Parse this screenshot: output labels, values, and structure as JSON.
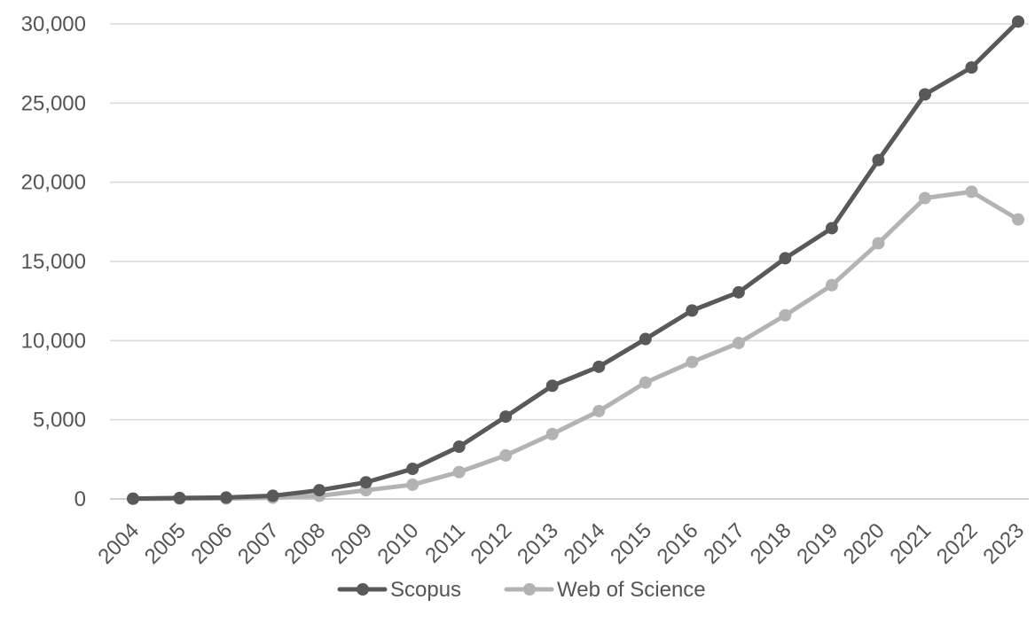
{
  "chart_data": {
    "type": "line",
    "title": "",
    "xlabel": "",
    "ylabel": "",
    "x": [
      "2004",
      "2005",
      "2006",
      "2007",
      "2008",
      "2009",
      "2010",
      "2011",
      "2012",
      "2013",
      "2014",
      "2015",
      "2016",
      "2017",
      "2018",
      "2019",
      "2020",
      "2021",
      "2022",
      "2023"
    ],
    "ylim": [
      0,
      30000
    ],
    "yticks": [
      0,
      5000,
      10000,
      15000,
      20000,
      25000,
      30000
    ],
    "ytick_labels": [
      "0",
      "5,000",
      "10,000",
      "15,000",
      "20,000",
      "25,000",
      "30,000"
    ],
    "grid": true,
    "legend_position": "bottom",
    "series": [
      {
        "name": "Scopus",
        "color": "#595959",
        "values": [
          20,
          60,
          90,
          200,
          550,
          1050,
          1900,
          3300,
          5200,
          7150,
          8350,
          10100,
          11900,
          13050,
          15200,
          17100,
          21400,
          25550,
          27250,
          30150
        ]
      },
      {
        "name": "Web of Science",
        "color": "#b3b3b3",
        "values": [
          10,
          20,
          30,
          80,
          200,
          550,
          900,
          1700,
          2750,
          4100,
          5550,
          7350,
          8650,
          9850,
          11600,
          13500,
          16150,
          19000,
          19400,
          17650
        ]
      }
    ]
  }
}
